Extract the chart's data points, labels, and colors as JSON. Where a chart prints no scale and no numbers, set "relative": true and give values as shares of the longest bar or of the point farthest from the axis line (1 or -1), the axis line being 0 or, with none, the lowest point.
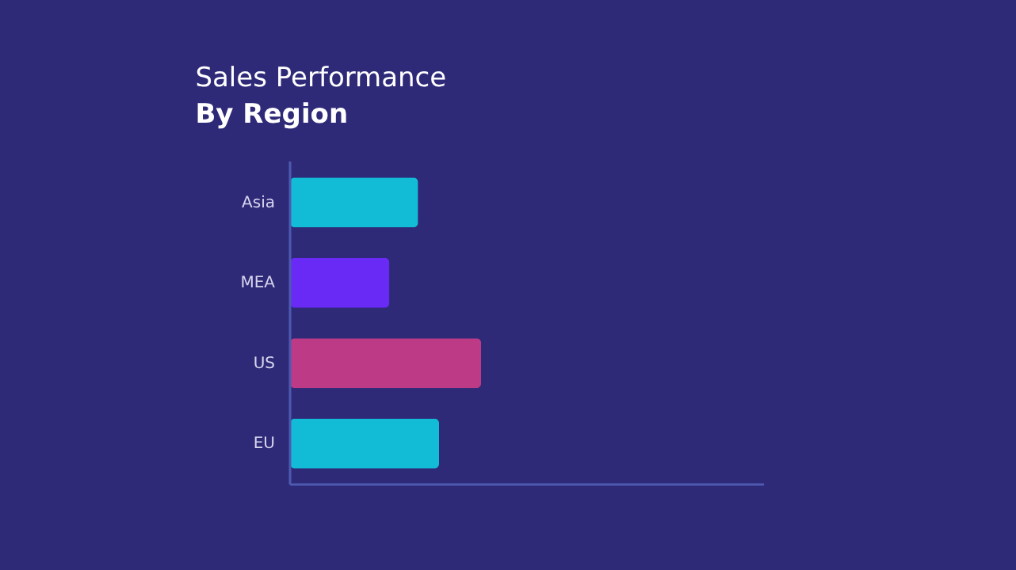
{
  "chart_data": {
    "type": "bar",
    "orientation": "horizontal",
    "relative": true,
    "title": "Sales Performance",
    "subtitle": "By Region",
    "categories": [
      "Asia",
      "MEA",
      "US",
      "EU"
    ],
    "values": [
      0.67,
      0.52,
      1,
      0.78
    ],
    "colors": [
      "#12bcd6",
      "#6a2af5",
      "#bd3b86",
      "#12bcd6"
    ]
  }
}
